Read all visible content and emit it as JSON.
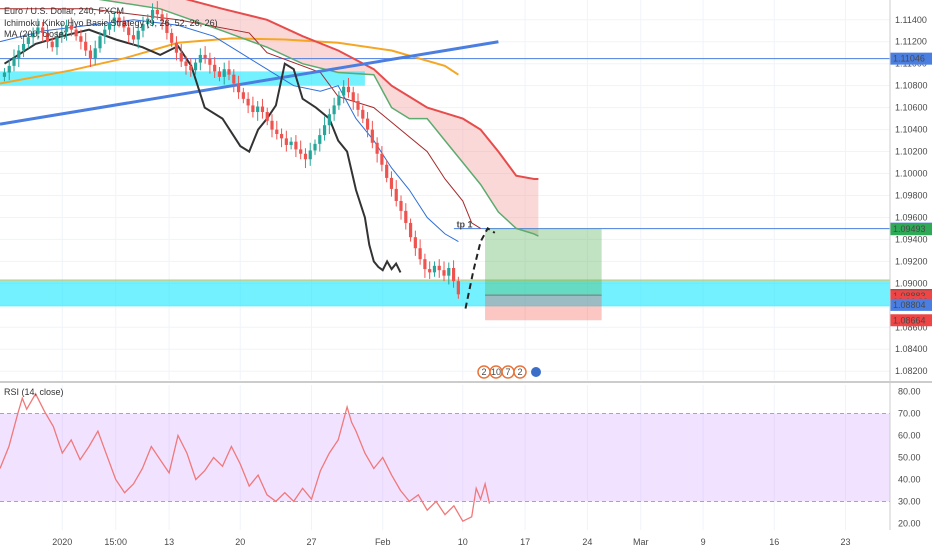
{
  "chart_data": [
    {
      "type": "candlestick",
      "panel": "price",
      "symbol_label": "Euro / U.S. Dollar, 240, FXCM",
      "legend": [
        "Ichimoku Kinko Hyo Basic Strategy (9, 26, 52, 26, 26)",
        "MA (200, close)"
      ],
      "ylim": [
        1.0812,
        1.1158
      ],
      "y_ticks": [
        1.082,
        1.084,
        1.086,
        1.088,
        1.09,
        1.092,
        1.094,
        1.096,
        1.098,
        1.1,
        1.102,
        1.104,
        1.106,
        1.108,
        1.11,
        1.112,
        1.114
      ],
      "y_tick_labels": [
        "1.08200",
        "1.08400",
        "1.08600",
        "1.08800",
        "1.09000",
        "1.09200",
        "1.09400",
        "1.09600",
        "1.09800",
        "1.10000",
        "1.10200",
        "1.10400",
        "1.10600",
        "1.10800",
        "1.11000",
        "1.11200",
        "1.11400"
      ],
      "x_tick_labels": [
        {
          "label": "2020",
          "t": 0.07
        },
        {
          "label": "15:00",
          "t": 0.13
        },
        {
          "label": "13",
          "t": 0.19
        },
        {
          "label": "20",
          "t": 0.27
        },
        {
          "label": "27",
          "t": 0.35
        },
        {
          "label": "Feb",
          "t": 0.43
        },
        {
          "label": "10",
          "t": 0.52
        },
        {
          "label": "17",
          "t": 0.59
        },
        {
          "label": "24",
          "t": 0.66
        },
        {
          "label": "Mar",
          "t": 0.72
        },
        {
          "label": "9",
          "t": 0.79
        },
        {
          "label": "16",
          "t": 0.87
        },
        {
          "label": "23",
          "t": 0.95
        }
      ],
      "price_labels": [
        {
          "value": 1.11046,
          "text": "1.11046",
          "color": "#4a7ee0"
        },
        {
          "value": 1.09498,
          "text": "1.09498",
          "color": "#4a7ee0"
        },
        {
          "value": 1.09493,
          "text": "1.09493",
          "color": "#2eaa57"
        },
        {
          "value": 1.08893,
          "text": "1.08893",
          "color": "#555555"
        },
        {
          "value": 1.08883,
          "text": "1.08883",
          "color": "#ef4545"
        },
        {
          "value": 1.0883,
          "text": "02:06:02",
          "color": "#ef4545"
        },
        {
          "value": 1.08804,
          "text": "1.08804",
          "color": "#4a7ee0"
        },
        {
          "value": 1.08664,
          "text": "1.08664",
          "color": "#ef4545"
        }
      ],
      "annotation": "tp 1",
      "event_badges": [
        "2",
        "10",
        "7",
        "2"
      ],
      "close_series": [
        1.1092,
        1.1098,
        1.1105,
        1.1112,
        1.1118,
        1.1124,
        1.1127,
        1.1133,
        1.1128,
        1.112,
        1.1115,
        1.1124,
        1.1129,
        1.1135,
        1.1131,
        1.1125,
        1.112,
        1.1112,
        1.1105,
        1.1114,
        1.1125,
        1.1131,
        1.1137,
        1.1142,
        1.1139,
        1.1133,
        1.1126,
        1.1122,
        1.113,
        1.1136,
        1.1141,
        1.1149,
        1.1145,
        1.1139,
        1.1128,
        1.1119,
        1.111,
        1.1102,
        1.1098,
        1.1094,
        1.1101,
        1.1108,
        1.1105,
        1.1099,
        1.1093,
        1.1088,
        1.1095,
        1.109,
        1.1082,
        1.1074,
        1.1068,
        1.1062,
        1.1056,
        1.1061,
        1.1056,
        1.1048,
        1.104,
        1.1036,
        1.1032,
        1.1026,
        1.1029,
        1.1022,
        1.1018,
        1.1013,
        1.1021,
        1.1027,
        1.1035,
        1.1044,
        1.1054,
        1.1062,
        1.1071,
        1.1079,
        1.1074,
        1.1066,
        1.1058,
        1.105,
        1.104,
        1.1028,
        1.1018,
        1.1008,
        1.0996,
        1.0986,
        1.0975,
        1.0966,
        1.0955,
        1.0942,
        1.0932,
        1.0922,
        1.0913,
        1.091,
        1.0916,
        1.0912,
        1.0907,
        1.0914,
        1.0902,
        1.089
      ],
      "candles_x_range": [
        0.005,
        0.515
      ],
      "ma200": [
        [
          0.0,
          1.1082
        ],
        [
          0.08,
          1.1094
        ],
        [
          0.14,
          1.1105
        ],
        [
          0.2,
          1.1119
        ],
        [
          0.26,
          1.1123
        ],
        [
          0.32,
          1.1122
        ],
        [
          0.38,
          1.1119
        ],
        [
          0.44,
          1.1112
        ],
        [
          0.5,
          1.1098
        ],
        [
          0.515,
          1.109
        ]
      ],
      "lagging_line": [
        [
          0.005,
          1.11
        ],
        [
          0.04,
          1.1118
        ],
        [
          0.07,
          1.1125
        ],
        [
          0.1,
          1.1131
        ],
        [
          0.13,
          1.1122
        ],
        [
          0.16,
          1.1115
        ],
        [
          0.18,
          1.1108
        ],
        [
          0.2,
          1.1116
        ],
        [
          0.215,
          1.1098
        ],
        [
          0.23,
          1.106
        ],
        [
          0.25,
          1.105
        ],
        [
          0.27,
          1.1025
        ],
        [
          0.28,
          1.102
        ],
        [
          0.29,
          1.104
        ],
        [
          0.3,
          1.105
        ],
        [
          0.31,
          1.1062
        ],
        [
          0.32,
          1.11
        ],
        [
          0.33,
          1.1095
        ],
        [
          0.34,
          1.1068
        ],
        [
          0.355,
          1.106
        ],
        [
          0.37,
          1.105
        ],
        [
          0.38,
          1.103
        ],
        [
          0.39,
          1.102
        ],
        [
          0.4,
          1.0985
        ],
        [
          0.41,
          1.096
        ],
        [
          0.415,
          1.0935
        ],
        [
          0.42,
          1.092
        ],
        [
          0.425,
          1.0915
        ],
        [
          0.43,
          1.0912
        ],
        [
          0.435,
          1.092
        ],
        [
          0.44,
          1.0913
        ],
        [
          0.445,
          1.0918
        ],
        [
          0.45,
          1.091
        ]
      ],
      "kijun": [
        [
          0.0,
          1.115
        ],
        [
          0.1,
          1.115
        ],
        [
          0.2,
          1.114
        ],
        [
          0.28,
          1.1128
        ],
        [
          0.3,
          1.111
        ],
        [
          0.36,
          1.1092
        ],
        [
          0.38,
          1.107
        ],
        [
          0.42,
          1.106
        ],
        [
          0.45,
          1.104
        ],
        [
          0.48,
          1.102
        ],
        [
          0.5,
          1.0995
        ],
        [
          0.52,
          1.0975
        ],
        [
          0.53,
          1.0955
        ],
        [
          0.54,
          1.095
        ]
      ],
      "tenkan": [
        [
          0.0,
          1.112
        ],
        [
          0.05,
          1.113
        ],
        [
          0.1,
          1.1135
        ],
        [
          0.15,
          1.114
        ],
        [
          0.2,
          1.1135
        ],
        [
          0.24,
          1.1125
        ],
        [
          0.27,
          1.111
        ],
        [
          0.3,
          1.1095
        ],
        [
          0.33,
          1.108
        ],
        [
          0.36,
          1.1075
        ],
        [
          0.38,
          1.108
        ],
        [
          0.4,
          1.105
        ],
        [
          0.42,
          1.103
        ],
        [
          0.44,
          1.1005
        ],
        [
          0.46,
          1.0985
        ],
        [
          0.48,
          1.096
        ],
        [
          0.5,
          1.0945
        ],
        [
          0.515,
          1.0938
        ]
      ],
      "cloud_span_a": [
        [
          0.03,
          1.1165
        ],
        [
          0.1,
          1.116
        ],
        [
          0.18,
          1.115
        ],
        [
          0.25,
          1.113
        ],
        [
          0.3,
          1.1115
        ],
        [
          0.34,
          1.11
        ],
        [
          0.38,
          1.1092
        ],
        [
          0.42,
          1.109
        ],
        [
          0.44,
          1.106
        ],
        [
          0.46,
          1.105
        ],
        [
          0.48,
          1.105
        ],
        [
          0.5,
          1.103
        ],
        [
          0.52,
          1.101
        ],
        [
          0.54,
          1.099
        ],
        [
          0.56,
          1.0965
        ],
        [
          0.58,
          1.095
        ],
        [
          0.6,
          1.0945
        ],
        [
          0.605,
          1.0943
        ]
      ],
      "cloud_span_b": [
        [
          0.03,
          1.117
        ],
        [
          0.1,
          1.1168
        ],
        [
          0.18,
          1.1165
        ],
        [
          0.25,
          1.115
        ],
        [
          0.3,
          1.114
        ],
        [
          0.34,
          1.1125
        ],
        [
          0.38,
          1.1112
        ],
        [
          0.42,
          1.1095
        ],
        [
          0.44,
          1.108
        ],
        [
          0.46,
          1.107
        ],
        [
          0.48,
          1.106
        ],
        [
          0.5,
          1.1055
        ],
        [
          0.52,
          1.105
        ],
        [
          0.54,
          1.104
        ],
        [
          0.56,
          1.102
        ],
        [
          0.58,
          1.0998
        ],
        [
          0.6,
          1.0995
        ],
        [
          0.605,
          1.0995
        ]
      ],
      "trendline": [
        [
          0.0,
          1.1045
        ],
        [
          0.56,
          1.112
        ]
      ],
      "support_zone": [
        1.0879,
        1.0903
      ],
      "resistance_zone": [
        1.108,
        1.1093
      ],
      "position_long": {
        "x_range": [
          0.545,
          0.676
        ],
        "entry": 1.08893,
        "target": 1.09498,
        "stop": 1.08664
      }
    },
    {
      "type": "line",
      "panel": "rsi",
      "legend": "RSI (14, close)",
      "ylim": [
        17,
        83
      ],
      "y_ticks": [
        20,
        30,
        40,
        50,
        60,
        70,
        80
      ],
      "y_tick_labels": [
        "20.00",
        "30.00",
        "40.00",
        "50.00",
        "60.00",
        "70.00",
        "80.00"
      ],
      "band": [
        30,
        70
      ],
      "rsi_series": [
        [
          0.0,
          45
        ],
        [
          0.01,
          55
        ],
        [
          0.02,
          70
        ],
        [
          0.025,
          77
        ],
        [
          0.03,
          72
        ],
        [
          0.04,
          79
        ],
        [
          0.05,
          71
        ],
        [
          0.06,
          64
        ],
        [
          0.07,
          52
        ],
        [
          0.08,
          58
        ],
        [
          0.09,
          49
        ],
        [
          0.1,
          55
        ],
        [
          0.11,
          62
        ],
        [
          0.12,
          51
        ],
        [
          0.13,
          40
        ],
        [
          0.14,
          34
        ],
        [
          0.15,
          38
        ],
        [
          0.16,
          45
        ],
        [
          0.17,
          55
        ],
        [
          0.18,
          49
        ],
        [
          0.19,
          43
        ],
        [
          0.2,
          60
        ],
        [
          0.21,
          52
        ],
        [
          0.22,
          40
        ],
        [
          0.23,
          44
        ],
        [
          0.24,
          50
        ],
        [
          0.25,
          46
        ],
        [
          0.26,
          55
        ],
        [
          0.27,
          47
        ],
        [
          0.28,
          37
        ],
        [
          0.29,
          42
        ],
        [
          0.3,
          33
        ],
        [
          0.31,
          30
        ],
        [
          0.32,
          34
        ],
        [
          0.33,
          30
        ],
        [
          0.34,
          36
        ],
        [
          0.35,
          31
        ],
        [
          0.36,
          44
        ],
        [
          0.37,
          52
        ],
        [
          0.38,
          58
        ],
        [
          0.39,
          73
        ],
        [
          0.395,
          66
        ],
        [
          0.4,
          62
        ],
        [
          0.41,
          52
        ],
        [
          0.42,
          45
        ],
        [
          0.43,
          50
        ],
        [
          0.44,
          42
        ],
        [
          0.45,
          35
        ],
        [
          0.46,
          30
        ],
        [
          0.47,
          33
        ],
        [
          0.48,
          26
        ],
        [
          0.49,
          30
        ],
        [
          0.5,
          24
        ],
        [
          0.51,
          28
        ],
        [
          0.52,
          21
        ],
        [
          0.53,
          23
        ],
        [
          0.535,
          36
        ],
        [
          0.54,
          31
        ],
        [
          0.545,
          38
        ],
        [
          0.55,
          29
        ]
      ]
    }
  ]
}
